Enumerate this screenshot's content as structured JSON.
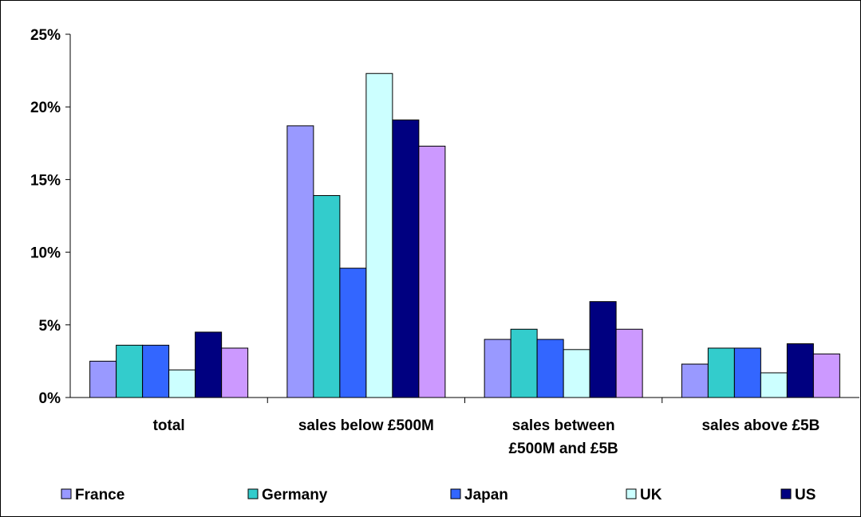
{
  "chart_data": {
    "type": "bar",
    "categories": [
      [
        "total"
      ],
      [
        "sales below £500M"
      ],
      [
        "sales between",
        "£500M and £5B"
      ],
      [
        "sales above £5B"
      ]
    ],
    "ylim": [
      0,
      25
    ],
    "y_ticks": [
      "0%",
      "5%",
      "10%",
      "15%",
      "20%",
      "25%"
    ],
    "grid": false,
    "legend_position": "bottom",
    "series": [
      {
        "name": "France",
        "color": "#9999ff",
        "values": [
          2.5,
          18.7,
          4.0,
          2.3
        ]
      },
      {
        "name": "Germany",
        "color": "#33cccc",
        "values": [
          3.6,
          13.9,
          4.7,
          3.4
        ]
      },
      {
        "name": "Japan",
        "color": "#3366ff",
        "values": [
          3.6,
          8.9,
          4.0,
          3.4
        ]
      },
      {
        "name": "UK",
        "color": "#ccffff",
        "values": [
          1.9,
          22.3,
          3.3,
          1.7
        ]
      },
      {
        "name": "US",
        "color": "#000080",
        "values": [
          4.5,
          19.1,
          6.6,
          3.7
        ]
      },
      {
        "name": "",
        "color": "#cc99ff",
        "values": [
          3.4,
          17.3,
          4.7,
          3.0
        ]
      }
    ]
  }
}
